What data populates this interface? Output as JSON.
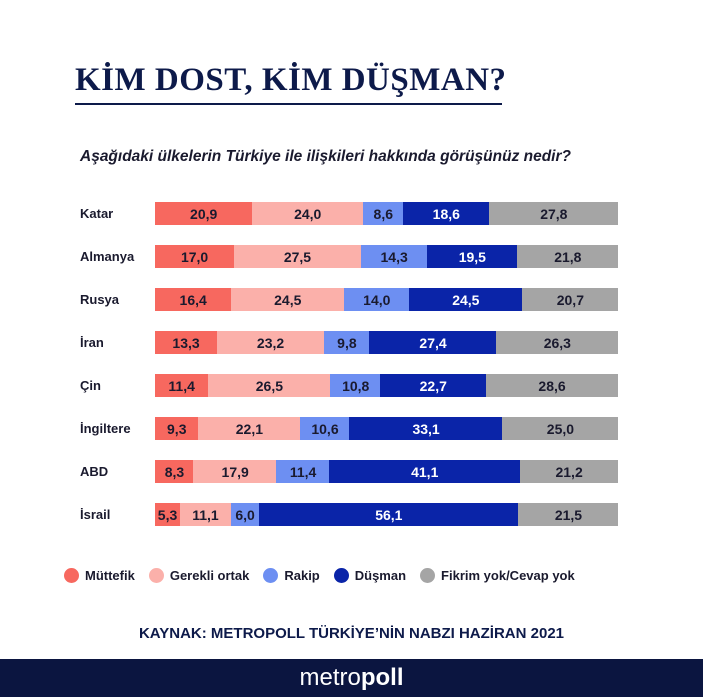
{
  "title": "KİM DOST, KİM DÜŞMAN?",
  "subtitle": "Aşağıdaki ülkelerin Türkiye ile ilişkileri hakkında görüşünüz nedir?",
  "source": "KAYNAK: METROPOLL TÜRKİYE’NİN NABZI HAZİRAN 2021",
  "logo": {
    "light": "metro",
    "bold": "poll"
  },
  "chart_data": {
    "type": "bar",
    "orientation": "horizontal",
    "stacked": true,
    "categories": [
      "Katar",
      "Almanya",
      "Rusya",
      "İran",
      "Çin",
      "İngiltere",
      "ABD",
      "İsrail"
    ],
    "series": [
      {
        "name": "Müttefik",
        "color": "#f7685f",
        "label_color": "#1a1a2e",
        "values": [
          20.9,
          17.0,
          16.4,
          13.3,
          11.4,
          9.3,
          8.3,
          5.3
        ]
      },
      {
        "name": "Gerekli ortak",
        "color": "#fbb0aa",
        "label_color": "#1a1a2e",
        "values": [
          24.0,
          27.5,
          24.5,
          23.2,
          26.5,
          22.1,
          17.9,
          11.1
        ]
      },
      {
        "name": "Rakip",
        "color": "#6d8ff2",
        "label_color": "#1a1a2e",
        "values": [
          8.6,
          14.3,
          14.0,
          9.8,
          10.8,
          10.6,
          11.4,
          6.0
        ]
      },
      {
        "name": "Düşman",
        "color": "#0a24a8",
        "label_color": "#ffffff",
        "values": [
          18.6,
          19.5,
          24.5,
          27.4,
          22.7,
          33.1,
          41.1,
          56.1
        ]
      },
      {
        "name": "Fikrim yok/Cevap yok",
        "color": "#a5a5a5",
        "label_color": "#1a1a2e",
        "values": [
          27.8,
          21.8,
          20.7,
          26.3,
          28.6,
          25.0,
          21.2,
          21.5
        ]
      }
    ],
    "legend": "bottom",
    "grid": false
  }
}
